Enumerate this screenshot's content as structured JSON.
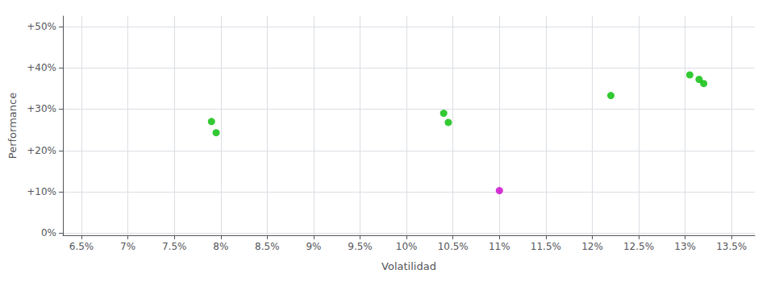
{
  "chart_data": {
    "type": "scatter",
    "xlabel": "Volatilidad",
    "ylabel": "Performance",
    "xlim": [
      0.063,
      0.1375
    ],
    "ylim": [
      -0.005,
      0.525
    ],
    "xticks": [
      {
        "value": 0.065,
        "label": "6.5%"
      },
      {
        "value": 0.07,
        "label": "7%"
      },
      {
        "value": 0.075,
        "label": "7.5%"
      },
      {
        "value": 0.08,
        "label": "8%"
      },
      {
        "value": 0.085,
        "label": "8.5%"
      },
      {
        "value": 0.09,
        "label": "9%"
      },
      {
        "value": 0.095,
        "label": "9.5%"
      },
      {
        "value": 0.1,
        "label": "10%"
      },
      {
        "value": 0.105,
        "label": "10.5%"
      },
      {
        "value": 0.11,
        "label": "11%"
      },
      {
        "value": 0.115,
        "label": "11.5%"
      },
      {
        "value": 0.12,
        "label": "12%"
      },
      {
        "value": 0.125,
        "label": "12.5%"
      },
      {
        "value": 0.13,
        "label": "13%"
      },
      {
        "value": 0.135,
        "label": "13.5%"
      }
    ],
    "yticks": [
      {
        "value": 0.0,
        "label": "0%"
      },
      {
        "value": 0.1,
        "label": "+10%"
      },
      {
        "value": 0.2,
        "label": "+20%"
      },
      {
        "value": 0.3,
        "label": "+30%"
      },
      {
        "value": 0.4,
        "label": "+40%"
      },
      {
        "value": 0.5,
        "label": "+50%"
      }
    ],
    "grid": true,
    "series": [
      {
        "color": "#00bb00",
        "x": [
          0.079,
          0.0795,
          0.104,
          0.1045,
          0.122,
          0.1305,
          0.1315,
          0.132
        ],
        "values": [
          0.27,
          0.243,
          0.29,
          0.268,
          0.333,
          0.383,
          0.372,
          0.362
        ]
      },
      {
        "color": "#cc00cc",
        "x": [
          0.11
        ],
        "values": [
          0.103
        ]
      }
    ]
  }
}
